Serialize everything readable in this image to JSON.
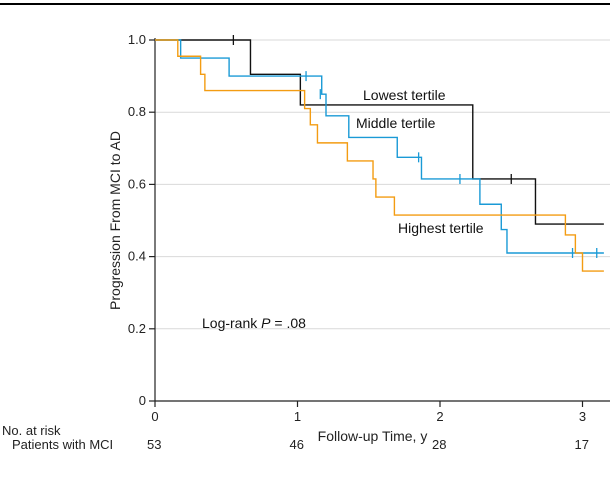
{
  "chart_data": {
    "type": "line",
    "subtype": "kaplan-meier step",
    "xlabel": "Follow-up Time, y",
    "ylabel": "Progression From MCI to AD",
    "xlim": [
      0,
      3.15
    ],
    "ylim": [
      0,
      1.0
    ],
    "x_ticks": [
      0,
      1,
      2,
      3
    ],
    "y_ticks": [
      0,
      0.2,
      0.4,
      0.6,
      0.8,
      1.0
    ],
    "x_tick_labels": [
      "0",
      "1",
      "2",
      "3"
    ],
    "y_tick_labels": [
      "0",
      "0.2",
      "0.4",
      "0.6",
      "0.8",
      "1.0"
    ],
    "grid": "horizontal",
    "annotation": {
      "prefix": "Log-rank ",
      "italic": "P",
      "suffix": " = .08"
    },
    "series": [
      {
        "name": "Lowest tertile",
        "color": "#111111",
        "steps": [
          [
            0,
            1.0
          ],
          [
            0.67,
            0.905
          ],
          [
            1.02,
            0.82
          ],
          [
            2.23,
            0.615
          ],
          [
            2.67,
            0.49
          ],
          [
            3.15,
            0.49
          ]
        ],
        "censored": [
          [
            0.55,
            1.0
          ],
          [
            2.5,
            0.615
          ]
        ]
      },
      {
        "name": "Middle tertile",
        "color": "#1a9ad6",
        "steps": [
          [
            0,
            1.0
          ],
          [
            0.18,
            0.95
          ],
          [
            0.52,
            0.9
          ],
          [
            1.17,
            0.85
          ],
          [
            1.2,
            0.79
          ],
          [
            1.36,
            0.73
          ],
          [
            1.7,
            0.675
          ],
          [
            1.87,
            0.615
          ],
          [
            2.28,
            0.545
          ],
          [
            2.43,
            0.475
          ],
          [
            2.47,
            0.41
          ],
          [
            3.15,
            0.41
          ]
        ],
        "censored": [
          [
            1.06,
            0.9
          ],
          [
            1.16,
            0.85
          ],
          [
            1.85,
            0.675
          ],
          [
            2.14,
            0.615
          ],
          [
            2.93,
            0.41
          ],
          [
            3.1,
            0.41
          ]
        ]
      },
      {
        "name": "Highest tertile",
        "color": "#f39c12",
        "steps": [
          [
            0,
            1.0
          ],
          [
            0.16,
            0.955
          ],
          [
            0.32,
            0.905
          ],
          [
            0.35,
            0.86
          ],
          [
            1.05,
            0.81
          ],
          [
            1.09,
            0.765
          ],
          [
            1.14,
            0.715
          ],
          [
            1.35,
            0.665
          ],
          [
            1.53,
            0.615
          ],
          [
            1.55,
            0.565
          ],
          [
            1.68,
            0.515
          ],
          [
            2.88,
            0.46
          ],
          [
            2.95,
            0.41
          ],
          [
            3.0,
            0.36
          ],
          [
            3.15,
            0.36
          ]
        ],
        "censored": []
      }
    ],
    "number_at_risk": {
      "title": "No. at risk",
      "row_label": "Patients with MCI",
      "times": [
        0,
        1,
        2,
        3
      ],
      "values": [
        "53",
        "46",
        "28",
        "17"
      ]
    }
  }
}
